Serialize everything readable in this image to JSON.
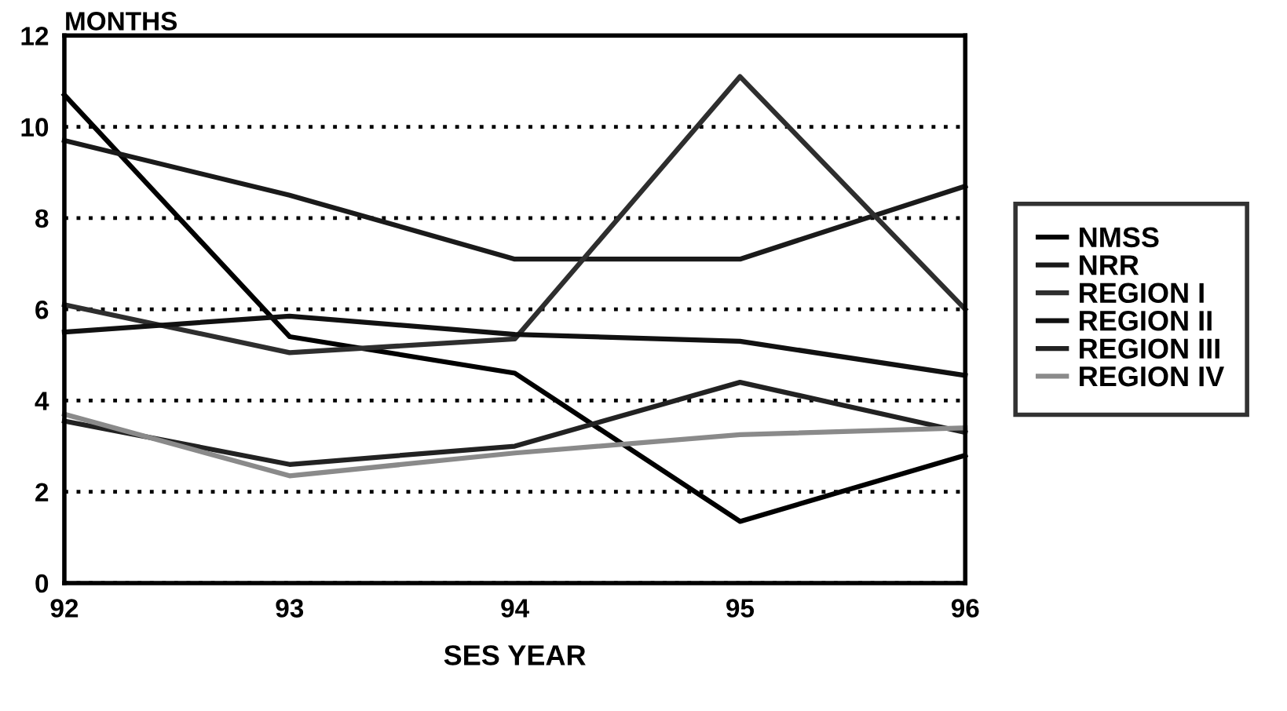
{
  "chart_data": {
    "type": "line",
    "ylabel": "MONTHS",
    "xlabel": "SES YEAR",
    "x": [
      92,
      93,
      94,
      95,
      96
    ],
    "series": [
      {
        "name": "NMSS",
        "color": "#000000",
        "values": [
          10.7,
          5.4,
          4.6,
          1.35,
          2.8
        ]
      },
      {
        "name": "NRR",
        "color": "#1a1a1a",
        "values": [
          9.7,
          8.5,
          7.1,
          7.1,
          8.7
        ]
      },
      {
        "name": "REGION I",
        "color": "#2e2e2e",
        "values": [
          6.1,
          5.05,
          5.35,
          11.1,
          6.0
        ]
      },
      {
        "name": "REGION II",
        "color": "#111111",
        "values": [
          5.5,
          5.85,
          5.45,
          5.3,
          4.55
        ]
      },
      {
        "name": "REGION III",
        "color": "#222222",
        "values": [
          3.55,
          2.6,
          3.0,
          4.4,
          3.3
        ]
      },
      {
        "name": "REGION IV",
        "color": "#8a8a8a",
        "values": [
          3.7,
          2.35,
          2.85,
          3.25,
          3.4
        ]
      }
    ],
    "xlim": [
      92,
      96
    ],
    "xticks": [
      92,
      93,
      94,
      95,
      96
    ],
    "ylim": [
      0,
      12
    ],
    "yticks": [
      0,
      2,
      4,
      6,
      8,
      10,
      12
    ],
    "grid": "y",
    "legend": "right",
    "marker": "none",
    "line_style": "solid"
  }
}
